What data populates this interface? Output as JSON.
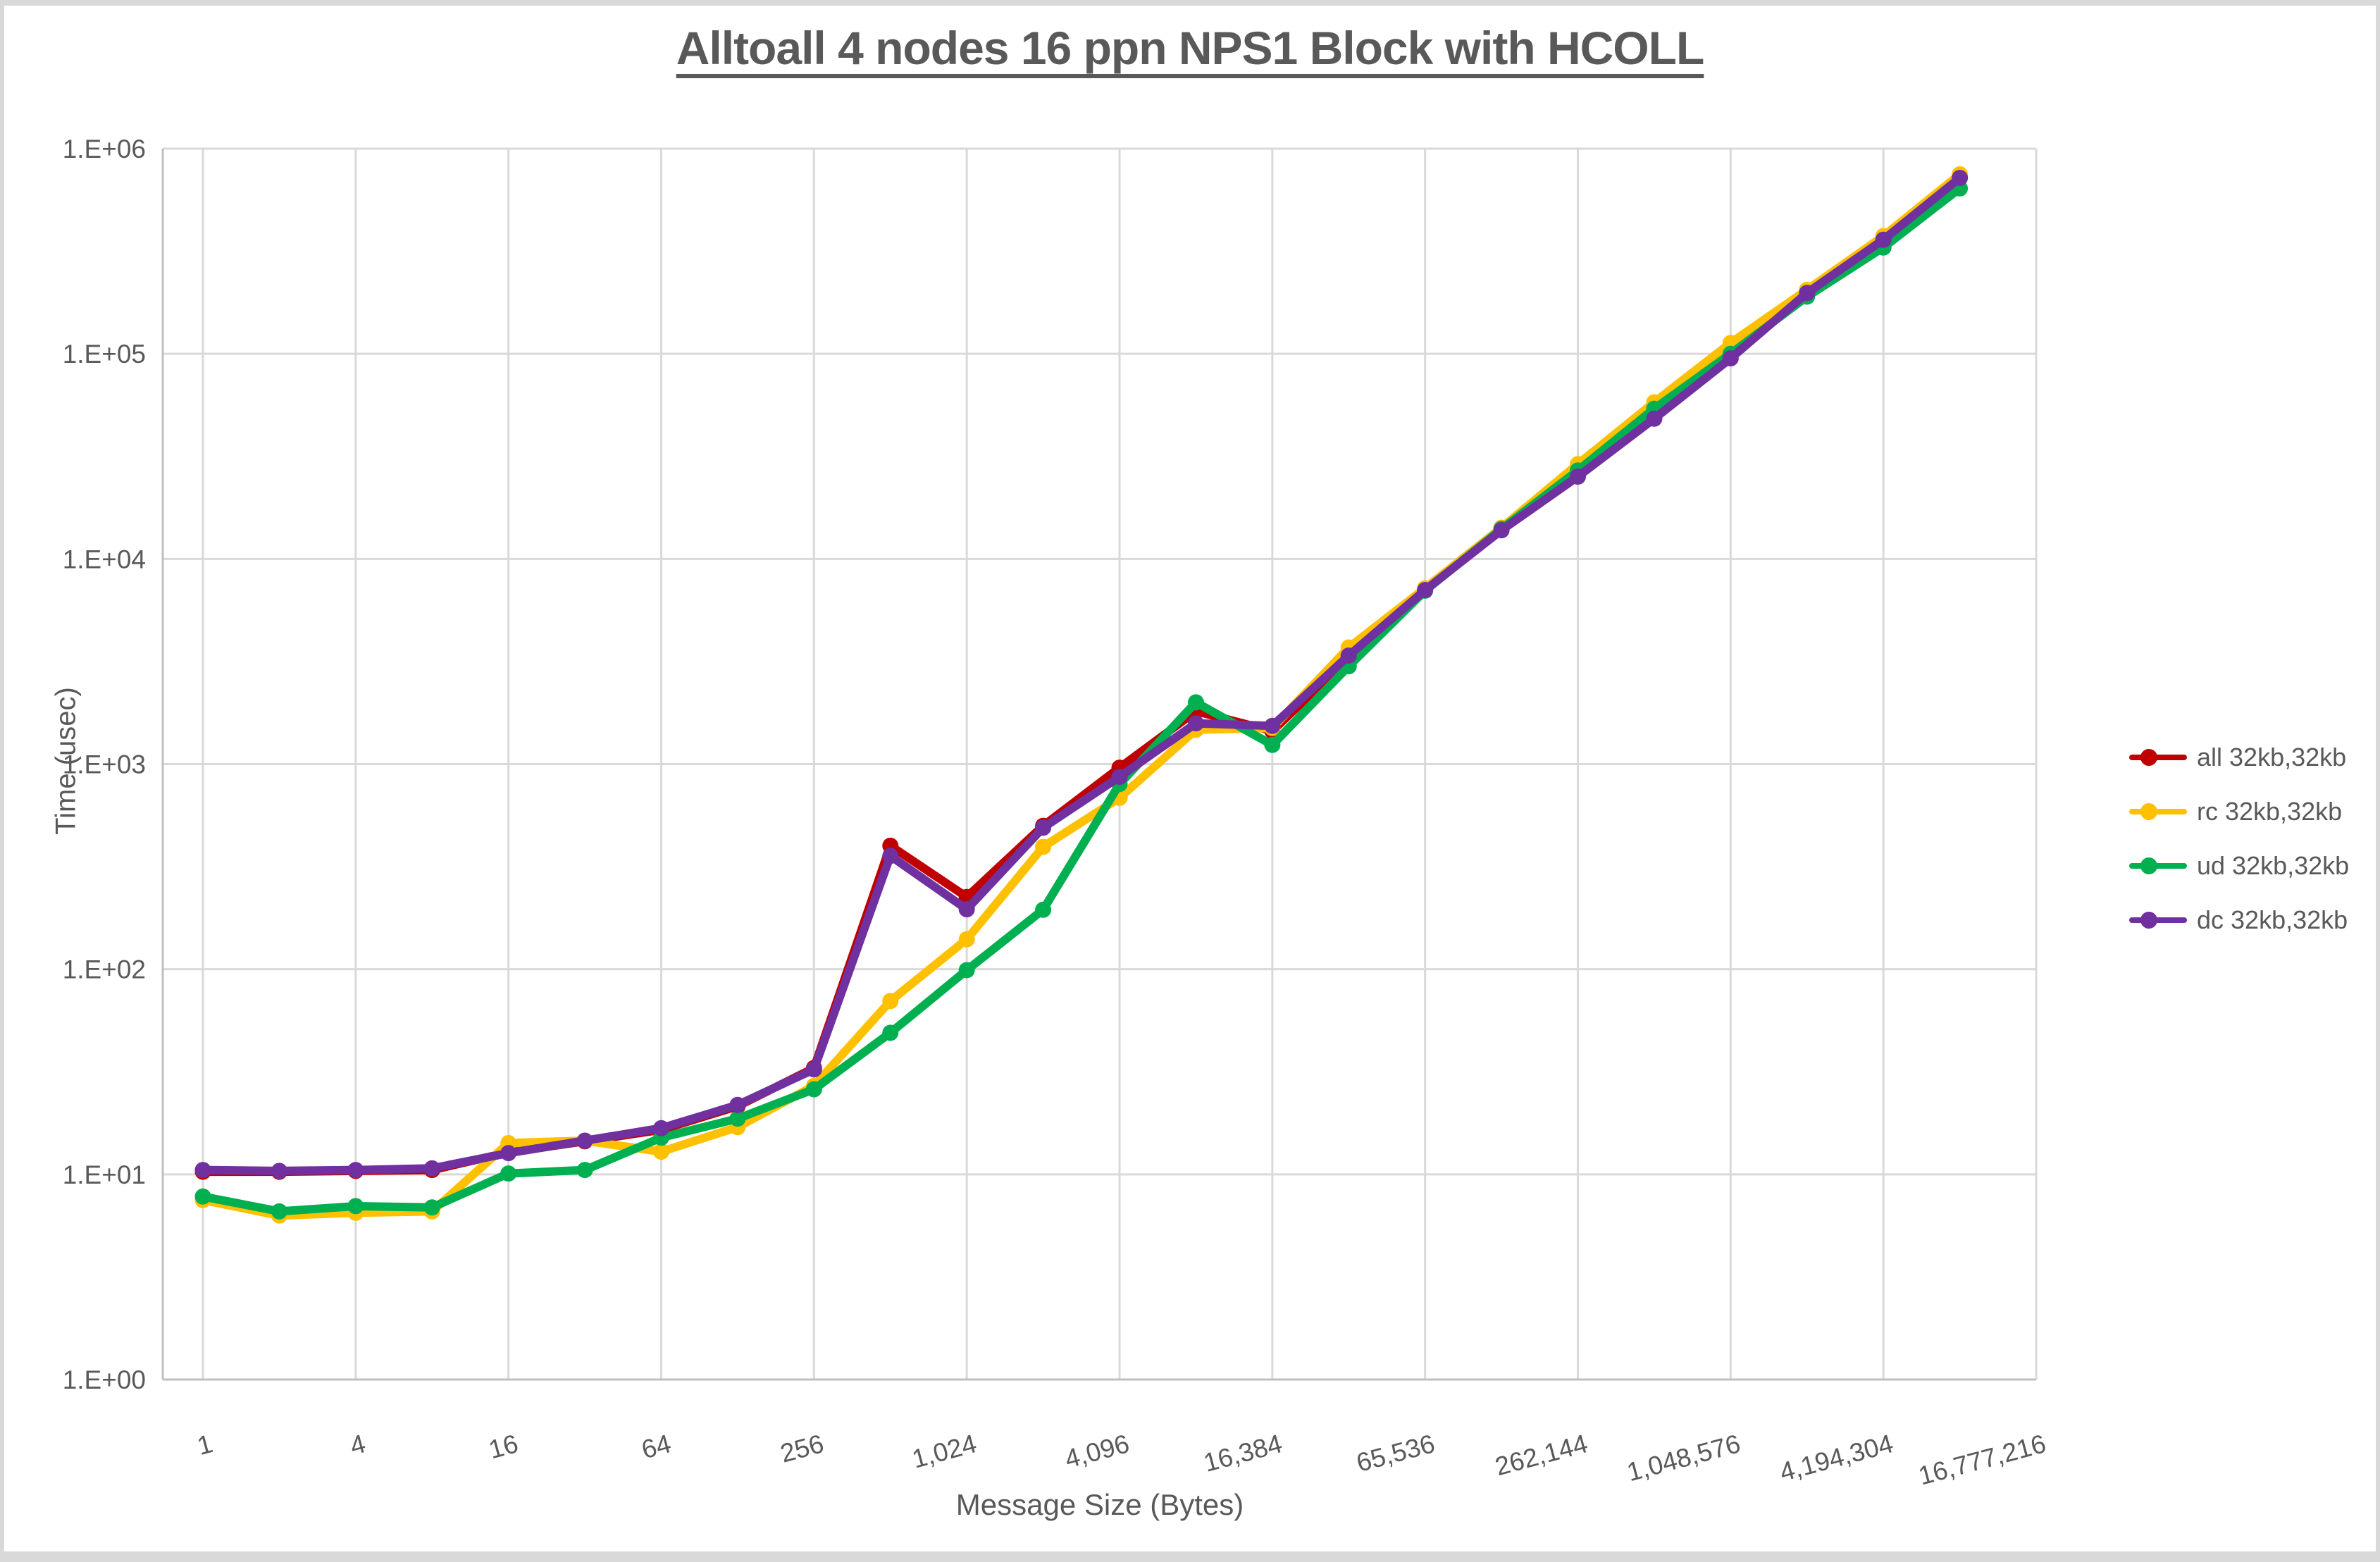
{
  "title": "Alltoall 4 nodes 16 ppn NPS1 Block with HCOLL",
  "axes": {
    "x_label": "Message Size (Bytes)",
    "y_label": "Time (usec)",
    "y_tick_labels": [
      "1.E+00",
      "1.E+01",
      "1.E+02",
      "1.E+03",
      "1.E+04",
      "1.E+05",
      "1.E+06"
    ],
    "x_tick_labels": [
      "1",
      "4",
      "16",
      "64",
      "256",
      "1,024",
      "4,096",
      "16,384",
      "65,536",
      "262,144",
      "1,048,576",
      "4,194,304",
      "16,777,216"
    ]
  },
  "legend": [
    {
      "label": "all 32kb,32kb",
      "color": "#C00000"
    },
    {
      "label": "rc 32kb,32kb",
      "color": "#FFC000"
    },
    {
      "label": "ud 32kb,32kb",
      "color": "#00B050"
    },
    {
      "label": "dc 32kb,32kb",
      "color": "#7030A0"
    }
  ],
  "colors": {
    "grid": "#D9D9D9",
    "axis": "#BFBFBF",
    "text": "#595959",
    "background": "#FFFFFF",
    "page_border": "#D9D9D9"
  },
  "chart_data": {
    "type": "line",
    "title": "Alltoall 4 nodes 16 ppn NPS1 Block with HCOLL",
    "xlabel": "Message Size (Bytes)",
    "ylabel": "Time (usec)",
    "x_scale": "log2-categories",
    "y_scale": "log10",
    "ylim": [
      1,
      1000000
    ],
    "grid": true,
    "legend_position": "right",
    "x": [
      1,
      2,
      4,
      8,
      16,
      32,
      64,
      128,
      256,
      512,
      1024,
      2048,
      4096,
      8192,
      16384,
      32768,
      65536,
      131072,
      262144,
      524288,
      1048576,
      2097152,
      4194304,
      8388608
    ],
    "x_axis_tick_labels": [
      "1",
      "4",
      "16",
      "64",
      "256",
      "1,024",
      "4,096",
      "16,384",
      "65,536",
      "262,144",
      "1,048,576",
      "4,194,304",
      "16,777,216"
    ],
    "y_axis_tick_labels": [
      "1.E+00",
      "1.E+01",
      "1.E+02",
      "1.E+03",
      "1.E+04",
      "1.E+05",
      "1.E+06"
    ],
    "series": [
      {
        "name": "all 32kb,32kb",
        "color": "#C00000",
        "values": [
          10.3,
          10.3,
          10.4,
          10.5,
          12.8,
          14.5,
          16.5,
          21.5,
          33,
          400,
          225,
          500,
          960,
          1810,
          1450,
          3300,
          7100,
          14000,
          25500,
          49000,
          100000,
          196000,
          365000,
          730000
        ]
      },
      {
        "name": "rc 32kb,32kb",
        "color": "#FFC000",
        "values": [
          7.5,
          6.3,
          6.5,
          6.6,
          14.2,
          14.6,
          12.9,
          17,
          27,
          70,
          140,
          395,
          685,
          1470,
          1500,
          3700,
          7200,
          14200,
          29000,
          58000,
          113000,
          205000,
          375000,
          750000
        ]
      },
      {
        "name": "ud 32kb,32kb",
        "color": "#00B050",
        "values": [
          7.8,
          6.6,
          7.0,
          6.9,
          10.1,
          10.5,
          15.1,
          18.7,
          26,
          49,
          99,
          195,
          800,
          2000,
          1240,
          3000,
          7000,
          14000,
          27000,
          54000,
          100000,
          190000,
          330000,
          640000
        ]
      },
      {
        "name": "dc 32kb,32kb",
        "color": "#7030A0",
        "values": [
          10.5,
          10.4,
          10.5,
          10.7,
          12.7,
          14.6,
          16.8,
          21.8,
          32.5,
          357,
          196,
          490,
          867,
          1580,
          1535,
          3380,
          7050,
          13800,
          25200,
          48300,
          95000,
          198000,
          360000,
          720000
        ]
      }
    ]
  }
}
